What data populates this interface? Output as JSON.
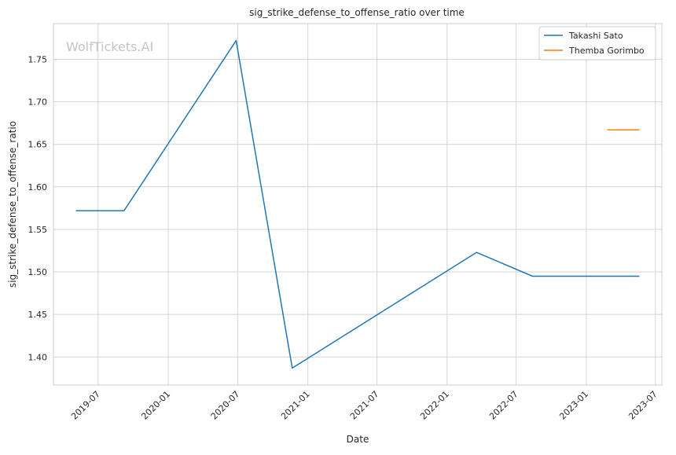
{
  "watermark": "WolfTickets.AI",
  "chart_data": {
    "type": "line",
    "title": "sig_strike_defense_to_offense_ratio over time",
    "xlabel": "Date",
    "ylabel": "sig_strike_defense_to_offense_ratio",
    "x_ticks": [
      "2019-07",
      "2020-01",
      "2020-07",
      "2021-01",
      "2021-07",
      "2022-01",
      "2022-07",
      "2023-01",
      "2023-07"
    ],
    "y_ticks": [
      1.4,
      1.45,
      1.5,
      1.55,
      1.6,
      1.65,
      1.7,
      1.75
    ],
    "xlim": [
      "2019-03-06",
      "2023-07-18"
    ],
    "ylim": [
      1.367,
      1.792
    ],
    "grid": true,
    "legend_position": "top-right",
    "series": [
      {
        "name": "Takashi Sato",
        "color": "#1f77b4",
        "points": [
          {
            "x": "2019-05-04",
            "y": 1.572
          },
          {
            "x": "2019-09-07",
            "y": 1.572
          },
          {
            "x": "2020-06-27",
            "y": 1.772
          },
          {
            "x": "2020-11-21",
            "y": 1.387
          },
          {
            "x": "2022-03-19",
            "y": 1.523
          },
          {
            "x": "2022-08-13",
            "y": 1.495
          },
          {
            "x": "2023-05-20",
            "y": 1.495
          }
        ]
      },
      {
        "name": "Themba Gorimbo",
        "color": "#ff7f0e",
        "points": [
          {
            "x": "2023-02-25",
            "y": 1.667
          },
          {
            "x": "2023-05-20",
            "y": 1.667
          }
        ]
      }
    ]
  }
}
